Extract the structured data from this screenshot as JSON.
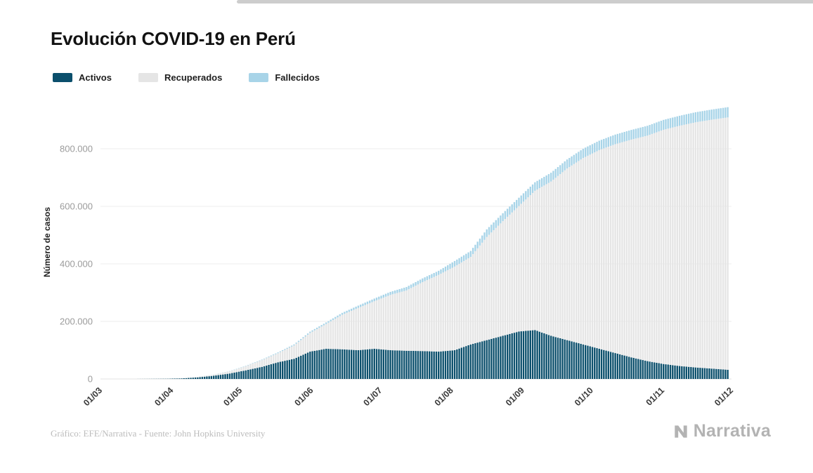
{
  "page": {
    "title": "Evolución COVID-19 en Perú",
    "footer": "Gráfico: EFE/Narrativa - Fuente: John Hopkins University",
    "brand": "Narrativa"
  },
  "legend": [
    {
      "label": "Activos",
      "color": "#0b4f6c"
    },
    {
      "label": "Recuperados",
      "color": "#e5e5e5"
    },
    {
      "label": "Fallecidos",
      "color": "#a8d4e8"
    }
  ],
  "chart_data": {
    "type": "bar",
    "stacked": true,
    "title": "Evolución COVID-19 en Perú",
    "xlabel": "",
    "ylabel": "Número de casos",
    "ylim": [
      0,
      950000
    ],
    "grid": "horizontal",
    "legend_position": "top-left",
    "y_ticks": [
      {
        "value": 0,
        "label": "0"
      },
      {
        "value": 200000,
        "label": "200.000"
      },
      {
        "value": 400000,
        "label": "400.000"
      },
      {
        "value": 600000,
        "label": "600.000"
      },
      {
        "value": 800000,
        "label": "800.000"
      }
    ],
    "x_ticks": [
      {
        "day": 0,
        "label": "01/03"
      },
      {
        "day": 31,
        "label": "01/04"
      },
      {
        "day": 61,
        "label": "01/05"
      },
      {
        "day": 92,
        "label": "01/06"
      },
      {
        "day": 122,
        "label": "01/07"
      },
      {
        "day": 153,
        "label": "01/08"
      },
      {
        "day": 184,
        "label": "01/09"
      },
      {
        "day": 214,
        "label": "01/10"
      },
      {
        "day": 245,
        "label": "01/11"
      },
      {
        "day": 275,
        "label": "01/12"
      }
    ],
    "dates": [
      "01/03",
      "08/03",
      "15/03",
      "22/03",
      "29/03",
      "05/04",
      "12/04",
      "19/04",
      "26/04",
      "03/05",
      "10/05",
      "17/05",
      "24/05",
      "31/05",
      "07/06",
      "14/06",
      "21/06",
      "28/06",
      "05/07",
      "12/07",
      "19/07",
      "26/07",
      "02/08",
      "09/08",
      "16/08",
      "23/08",
      "30/08",
      "06/09",
      "13/09",
      "20/09",
      "27/09",
      "04/10",
      "11/10",
      "18/10",
      "25/10",
      "01/11",
      "08/11",
      "15/11",
      "22/11",
      "29/11"
    ],
    "day_offsets": [
      0,
      7,
      14,
      21,
      28,
      35,
      42,
      49,
      56,
      63,
      70,
      77,
      84,
      91,
      98,
      105,
      112,
      119,
      126,
      133,
      140,
      147,
      154,
      161,
      168,
      175,
      182,
      189,
      196,
      203,
      210,
      217,
      224,
      231,
      238,
      245,
      252,
      259,
      266,
      273
    ],
    "series": [
      {
        "name": "Activos",
        "color": "#0b4f6c",
        "values": [
          0,
          10,
          80,
          340,
          700,
          2000,
          5500,
          11000,
          19000,
          30000,
          42000,
          58000,
          70000,
          95000,
          105000,
          103000,
          100000,
          105000,
          100000,
          98000,
          97000,
          95000,
          100000,
          120000,
          135000,
          150000,
          165000,
          170000,
          150000,
          135000,
          120000,
          105000,
          90000,
          75000,
          62000,
          52000,
          45000,
          40000,
          36000,
          32000
        ]
      },
      {
        "name": "Recuperados",
        "color": "#e5e5e5",
        "values": [
          0,
          1,
          3,
          14,
          128,
          469,
          1838,
          4228,
          7789,
          14642,
          23418,
          31625,
          46503,
          64970,
          86050,
          120048,
          146891,
          165102,
          192129,
          209776,
          239502,
          266807,
          290592,
          304351,
          358342,
          398614,
          436173,
          484015,
          536200,
          596496,
          648000,
          690427,
          726066,
          756847,
          783727,
          814000,
          835000,
          852000,
          865000,
          877000
        ]
      },
      {
        "name": "Fallecidos",
        "color": "#a8d4e8",
        "values": [
          0,
          0,
          3,
          9,
          24,
          92,
          181,
          400,
          728,
          1286,
          1889,
          2648,
          3456,
          4506,
          5465,
          6688,
          8045,
          9317,
          10589,
          11870,
          12998,
          14154,
          19408,
          20649,
          26658,
          27453,
          28788,
          29687,
          30470,
          31369,
          32142,
          32742,
          33305,
          33702,
          34149,
          34400,
          34700,
          35000,
          35300,
          35600
        ]
      }
    ]
  }
}
